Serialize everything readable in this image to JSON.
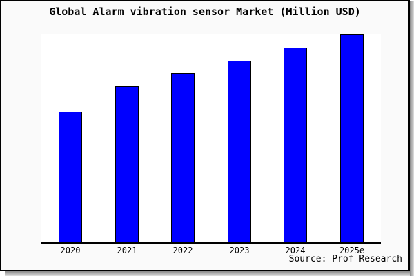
{
  "window": {
    "background_color": "#fafafa",
    "plot_background_color": "#ffffff",
    "frame_border_color": "#000000"
  },
  "chart_data": {
    "type": "bar",
    "title": "Global Alarm vibration sensor Market (Million USD)",
    "categories": [
      "2020",
      "2021",
      "2022",
      "2023",
      "2024",
      "2025e"
    ],
    "values": [
      189,
      226,
      245,
      263,
      282,
      301
    ],
    "xlabel": "",
    "ylabel": "",
    "ylim": [
      0,
      301
    ],
    "y_axis_labels_visible": false,
    "grid": false,
    "legend": false,
    "bar_color": "#0000ff",
    "bar_border_color": "#000000",
    "source": "Source: Prof Research"
  }
}
